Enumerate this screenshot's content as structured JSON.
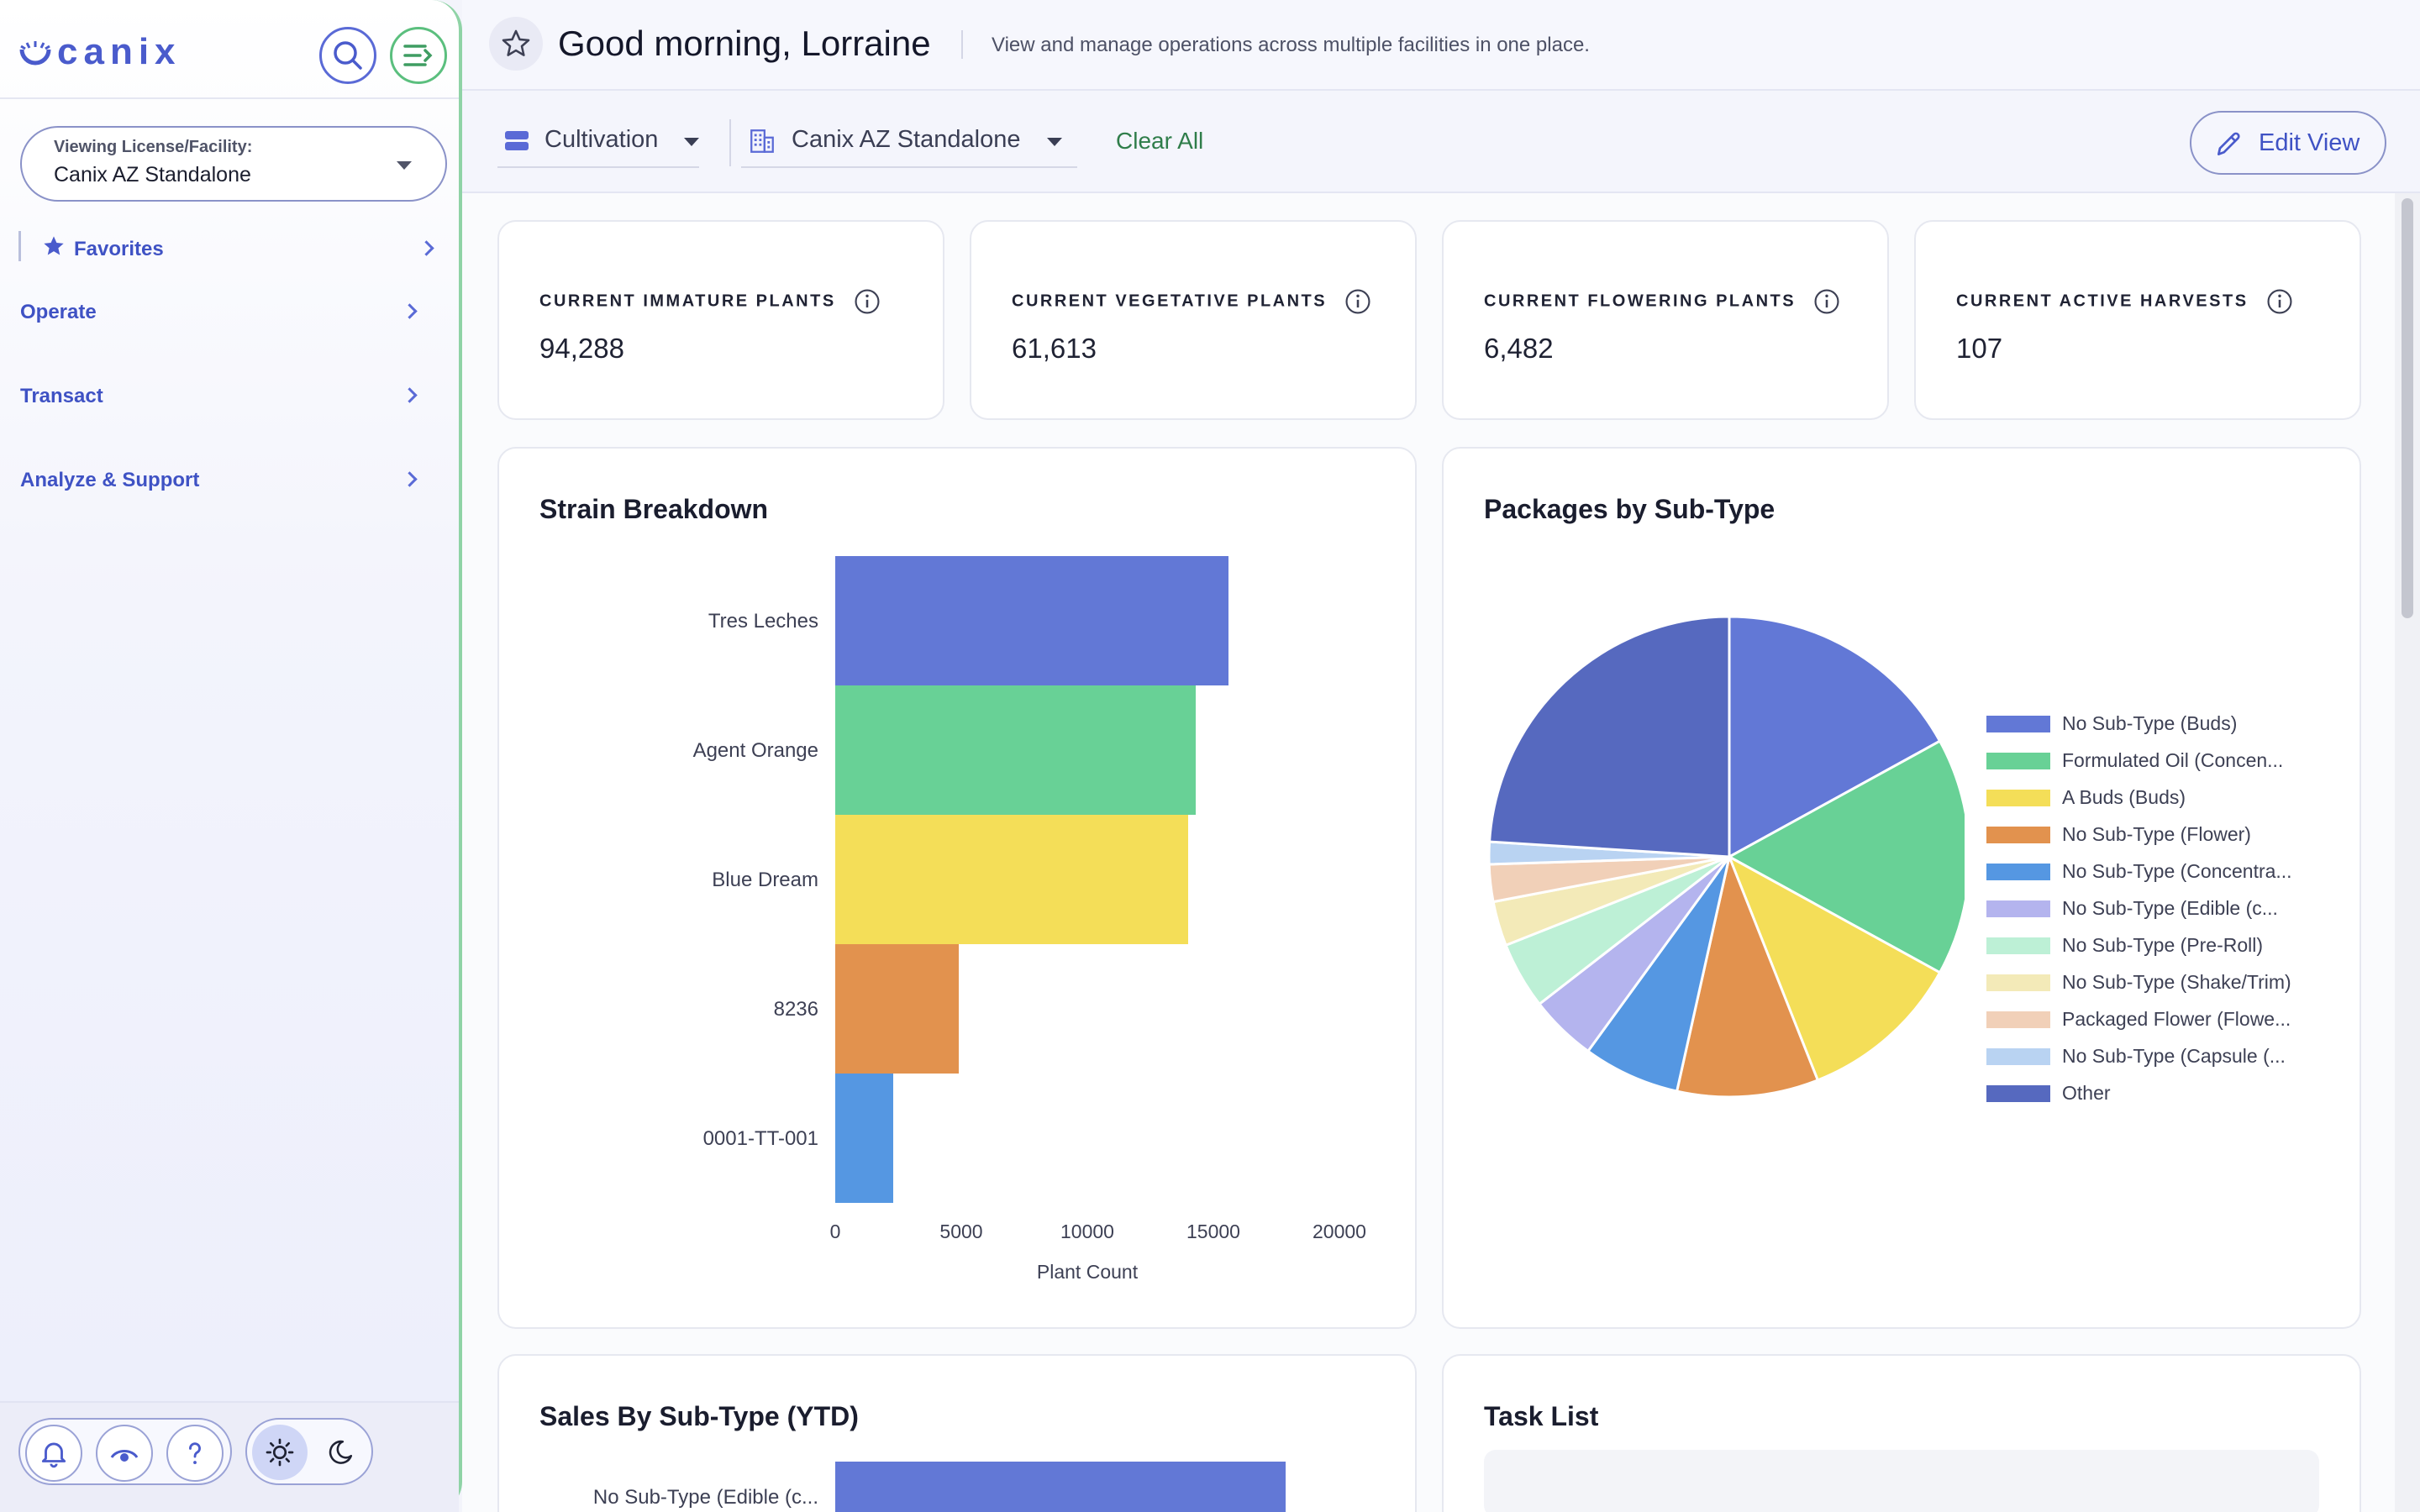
{
  "app": {
    "logo_text": "canix",
    "brand_color": "#4a5bcc",
    "accent_green": "#5bbf7e"
  },
  "sidebar": {
    "facility_label": "Viewing License/Facility:",
    "facility_value": "Canix AZ Standalone",
    "favorites_label": "Favorites",
    "nav": [
      "Operate",
      "Transact",
      "Analyze & Support"
    ],
    "icons": {
      "search": "search-icon",
      "collapse": "collapse-menu-icon",
      "notifications": "bell-icon",
      "visibility": "eye-icon",
      "help": "help-icon",
      "light_mode": "sun-icon",
      "dark_mode": "moon-icon"
    }
  },
  "header": {
    "greeting": "Good morning, Lorraine",
    "subtitle": "View and manage operations across multiple facilities in one place."
  },
  "filters": {
    "category": "Cultivation",
    "facility": "Canix AZ Standalone",
    "clear_all": "Clear All",
    "edit_view": "Edit View"
  },
  "stats": [
    {
      "title": "CURRENT IMMATURE PLANTS",
      "value": "94,288"
    },
    {
      "title": "CURRENT VEGETATIVE PLANTS",
      "value": "61,613"
    },
    {
      "title": "CURRENT FLOWERING PLANTS",
      "value": "6,482"
    },
    {
      "title": "CURRENT ACTIVE HARVESTS",
      "value": "107"
    }
  ],
  "panels": {
    "strain_title": "Strain Breakdown",
    "packages_title": "Packages by Sub-Type",
    "sales_title": "Sales By Sub-Type (YTD)",
    "tasks_title": "Task List"
  },
  "chart_data": [
    {
      "type": "bar",
      "orientation": "horizontal",
      "title": "Strain Breakdown",
      "categories": [
        "Tres Leches",
        "Agent Orange",
        "Blue Dream",
        "8236",
        "0001-TT-001"
      ],
      "values": [
        15600,
        14300,
        14000,
        4900,
        2300
      ],
      "colors": [
        "#6278d6",
        "#68d196",
        "#f4de58",
        "#e2924e",
        "#5597e2"
      ],
      "xlabel": "Plant Count",
      "ylabel": "",
      "xlim": [
        0,
        20000
      ],
      "xticks": [
        0,
        5000,
        10000,
        15000,
        20000
      ],
      "grid": false
    },
    {
      "type": "pie",
      "title": "Packages by Sub-Type",
      "legend_position": "right",
      "labels": [
        "No Sub-Type (Buds)",
        "Formulated Oil (Concen...",
        "A Buds (Buds)",
        "No Sub-Type (Flower)",
        "No Sub-Type (Concentra...",
        "No Sub-Type (Edible (c...",
        "No Sub-Type (Pre-Roll)",
        "No Sub-Type (Shake/Trim)",
        "Packaged Flower (Flowe...",
        "No Sub-Type (Capsule (...",
        "Other"
      ],
      "values": [
        17,
        16,
        11,
        9.5,
        6.5,
        4.5,
        4.5,
        3,
        2.5,
        1.5,
        24
      ],
      "colors": [
        "#6278d6",
        "#68d196",
        "#f4de58",
        "#e2924e",
        "#5597e2",
        "#b4b4ee",
        "#bdf0d6",
        "#f3eab8",
        "#f1d0b8",
        "#b9d3f2",
        "#5669bf"
      ]
    },
    {
      "type": "bar",
      "orientation": "horizontal",
      "title": "Sales By Sub-Type (YTD)",
      "categories": [
        "No Sub-Type (Edible (c..."
      ],
      "values": [
        null
      ],
      "colors": [
        "#6278d6"
      ]
    }
  ]
}
